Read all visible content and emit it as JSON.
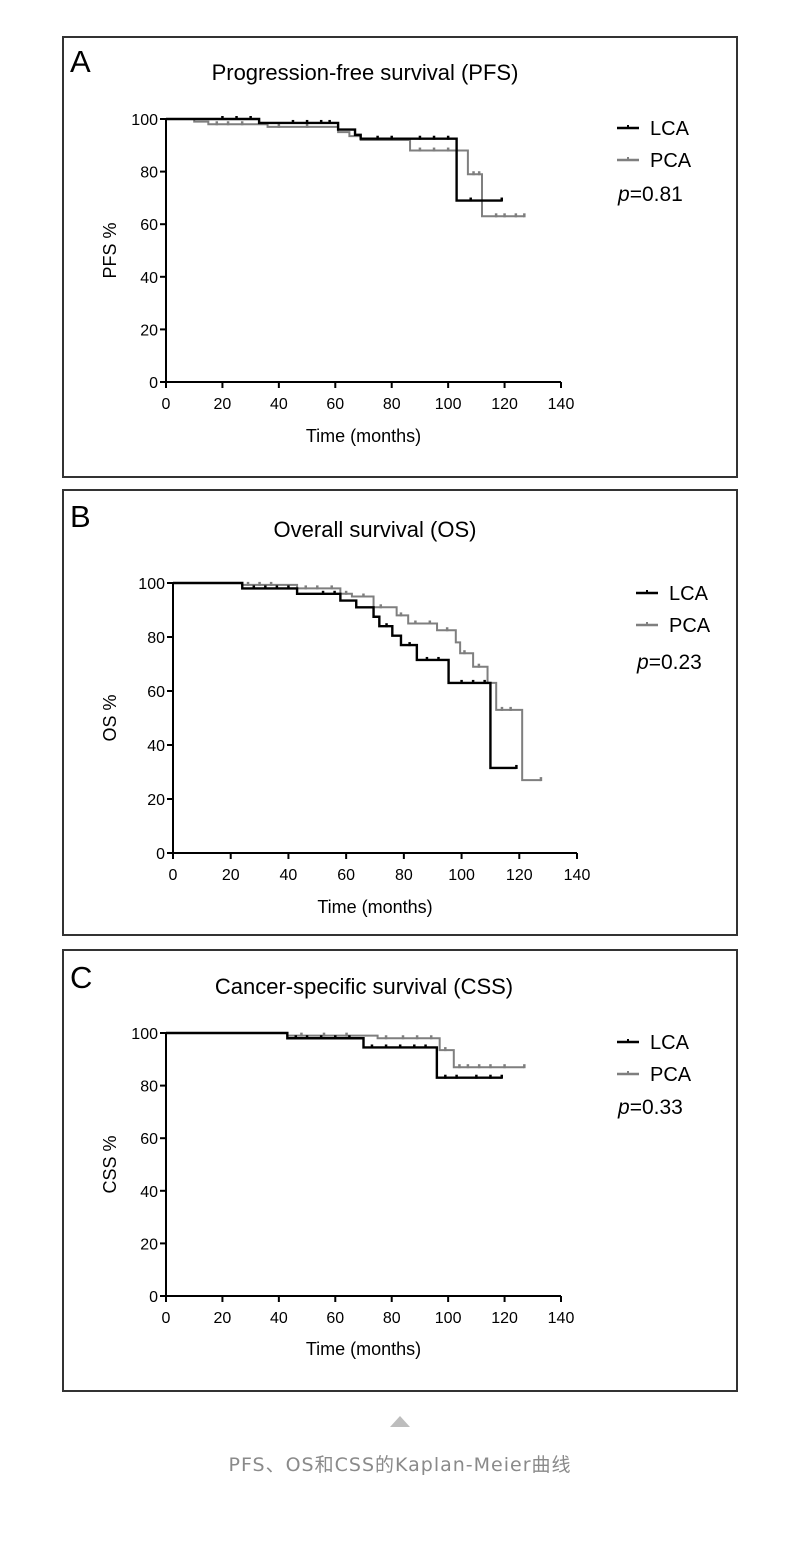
{
  "caption": "PFS、OS和CSS的Kaplan-Meier曲线",
  "colors": {
    "LCA": "#000000",
    "PCA": "#7f7f7f",
    "frame": "#333333",
    "caption": "#8a8a8a"
  },
  "chart_data": [
    {
      "type": "line",
      "panel_label": "A",
      "title": "Progression-free survival (PFS)",
      "xlabel": "Time (months)",
      "ylabel": "PFS %",
      "xlim": [
        0,
        140
      ],
      "ylim": [
        0,
        100
      ],
      "xticks": [
        "0",
        "20",
        "40",
        "60",
        "80",
        "100",
        "120",
        "140"
      ],
      "yticks": [
        "0",
        "20",
        "40",
        "60",
        "80",
        "100"
      ],
      "grid": false,
      "legend": "right",
      "p_text": "p=0.81",
      "series": [
        {
          "name": "LCA",
          "steps": [
            [
              0,
              100
            ],
            [
              33,
              98.5
            ],
            [
              61,
              96
            ],
            [
              67,
              94
            ],
            [
              69,
              92.5
            ],
            [
              103,
              69
            ],
            [
              119,
              69
            ]
          ],
          "censored": [
            20,
            25,
            30,
            45,
            50,
            55,
            58,
            75,
            80,
            90,
            95,
            100,
            108,
            119
          ]
        },
        {
          "name": "PCA",
          "steps": [
            [
              0,
              100
            ],
            [
              10,
              99
            ],
            [
              15,
              98
            ],
            [
              36,
              97
            ],
            [
              61,
              95
            ],
            [
              65,
              93.5
            ],
            [
              69,
              92
            ],
            [
              86.5,
              88
            ],
            [
              107,
              79
            ],
            [
              112,
              63
            ],
            [
              127,
              63
            ]
          ],
          "censored": [
            18,
            22,
            27,
            40,
            50,
            90,
            95,
            100,
            109,
            111,
            117,
            120,
            124,
            127
          ]
        }
      ]
    },
    {
      "type": "line",
      "panel_label": "B",
      "title": "Overall survival (OS)",
      "xlabel": "Time (months)",
      "ylabel": "OS %",
      "xlim": [
        0,
        140
      ],
      "ylim": [
        0,
        100
      ],
      "xticks": [
        "0",
        "20",
        "40",
        "60",
        "80",
        "100",
        "120",
        "140"
      ],
      "yticks": [
        "0",
        "20",
        "40",
        "60",
        "80",
        "100"
      ],
      "grid": false,
      "legend": "right",
      "p_text": "p=0.23",
      "series": [
        {
          "name": "LCA",
          "steps": [
            [
              0,
              100
            ],
            [
              24,
              98
            ],
            [
              43,
              96
            ],
            [
              58,
              93.5
            ],
            [
              63.5,
              91
            ],
            [
              69.5,
              87.5
            ],
            [
              71.5,
              84
            ],
            [
              76,
              80.5
            ],
            [
              79,
              77
            ],
            [
              84.5,
              71.5
            ],
            [
              95.5,
              63
            ],
            [
              110,
              31.5
            ],
            [
              119,
              31.5
            ]
          ],
          "censored": [
            28,
            32,
            36,
            40,
            52,
            56,
            74,
            82,
            88,
            92,
            100,
            104,
            108,
            119
          ]
        },
        {
          "name": "PCA",
          "steps": [
            [
              0,
              100
            ],
            [
              24,
              99.3
            ],
            [
              43,
              98
            ],
            [
              58,
              96
            ],
            [
              62,
              95
            ],
            [
              69.5,
              91
            ],
            [
              77.5,
              88
            ],
            [
              81.5,
              85
            ],
            [
              91.5,
              82.5
            ],
            [
              98,
              78
            ],
            [
              99.5,
              74
            ],
            [
              104,
              69
            ],
            [
              109,
              63
            ],
            [
              112,
              53
            ],
            [
              121,
              27
            ],
            [
              127.5,
              27
            ]
          ],
          "censored": [
            26,
            30,
            34,
            46,
            50,
            55,
            60,
            66,
            72,
            79,
            84,
            89,
            95,
            101,
            106,
            114,
            117,
            127.5
          ]
        }
      ]
    },
    {
      "type": "line",
      "panel_label": "C",
      "title": "Cancer-specific survival (CSS)",
      "xlabel": "Time (months)",
      "ylabel": "CSS %",
      "xlim": [
        0,
        140
      ],
      "ylim": [
        0,
        100
      ],
      "xticks": [
        "0",
        "20",
        "40",
        "60",
        "80",
        "100",
        "120",
        "140"
      ],
      "yticks": [
        "0",
        "20",
        "40",
        "60",
        "80",
        "100"
      ],
      "grid": false,
      "legend": "right",
      "p_text": "p=0.33",
      "series": [
        {
          "name": "LCA",
          "steps": [
            [
              0,
              100
            ],
            [
              43,
              98
            ],
            [
              70,
              94.5
            ],
            [
              96,
              83
            ],
            [
              119,
              83
            ]
          ],
          "censored": [
            46,
            50,
            55,
            60,
            65,
            73,
            78,
            83,
            88,
            92,
            99,
            103,
            110,
            115,
            119
          ]
        },
        {
          "name": "PCA",
          "steps": [
            [
              0,
              100
            ],
            [
              43,
              99
            ],
            [
              75,
              98
            ],
            [
              97,
              93.5
            ],
            [
              102,
              87
            ],
            [
              127,
              87
            ]
          ],
          "censored": [
            48,
            56,
            64,
            78,
            84,
            89,
            94,
            99,
            104,
            107,
            111,
            115,
            120,
            127
          ]
        }
      ]
    }
  ]
}
